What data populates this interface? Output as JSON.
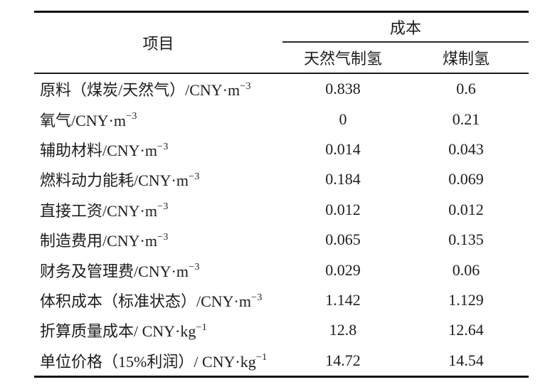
{
  "colors": {
    "background": "#ffffff",
    "text": "#1d1d1f",
    "rule_line": "#111111"
  },
  "table": {
    "header": {
      "item_label": "项目",
      "cost_label": "成本",
      "gas_label": "天然气制氢",
      "coal_label": "煤制氢"
    },
    "rows": [
      {
        "label": "原料（煤炭/天然气）/CNY·m",
        "sup": "−3",
        "gas": "0.838",
        "coal": "0.6"
      },
      {
        "label": "氧气/CNY·m",
        "sup": "−3",
        "gas": "0",
        "coal": "0.21"
      },
      {
        "label": "辅助材料/CNY·m",
        "sup": "−3",
        "gas": "0.014",
        "coal": "0.043"
      },
      {
        "label": "燃料动力能耗/CNY·m",
        "sup": "−3",
        "gas": "0.184",
        "coal": "0.069"
      },
      {
        "label": "直接工资/CNY·m",
        "sup": "−3",
        "gas": "0.012",
        "coal": "0.012"
      },
      {
        "label": "制造费用/CNY·m",
        "sup": "−3",
        "gas": "0.065",
        "coal": "0.135"
      },
      {
        "label": "财务及管理费/CNY·m",
        "sup": "−3",
        "gas": "0.029",
        "coal": "0.06"
      },
      {
        "label": "体积成本（标准状态）/CNY·m",
        "sup": "−3",
        "gas": "1.142",
        "coal": "1.129"
      },
      {
        "label": "折算质量成本/ CNY·kg",
        "sup": "−1",
        "gas": "12.8",
        "coal": "12.64"
      },
      {
        "label": "单位价格（15%利润）/ CNY·kg",
        "sup": "−1",
        "gas": "14.72",
        "coal": "14.54"
      }
    ]
  },
  "chart_data": {
    "type": "table",
    "title": "成本",
    "columns": [
      "项目",
      "天然气制氢",
      "煤制氢"
    ],
    "rows": [
      [
        "原料（煤炭/天然气）/CNY·m−3",
        0.838,
        0.6
      ],
      [
        "氧气/CNY·m−3",
        0,
        0.21
      ],
      [
        "辅助材料/CNY·m−3",
        0.014,
        0.043
      ],
      [
        "燃料动力能耗/CNY·m−3",
        0.184,
        0.069
      ],
      [
        "直接工资/CNY·m−3",
        0.012,
        0.012
      ],
      [
        "制造费用/CNY·m−3",
        0.065,
        0.135
      ],
      [
        "财务及管理费/CNY·m−3",
        0.029,
        0.06
      ],
      [
        "体积成本（标准状态）/CNY·m−3",
        1.142,
        1.129
      ],
      [
        "折算质量成本/ CNY·kg−1",
        12.8,
        12.64
      ],
      [
        "单位价格（15%利润）/ CNY·kg−1",
        14.72,
        14.54
      ]
    ]
  }
}
